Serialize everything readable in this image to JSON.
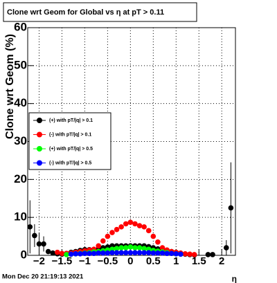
{
  "chart_data": {
    "type": "scatter",
    "title": "Clone wrt Geom for Global vs  η at pT > 0.11",
    "x_label": "η",
    "y_label": "Clone wrt Geom (%)",
    "footer": "Mon Dec 20 21:19:13 2021",
    "xlim": [
      -2.25,
      2.3
    ],
    "ylim": [
      0,
      60
    ],
    "xticks": [
      {
        "value": -2,
        "label": "−2"
      },
      {
        "value": -1.5,
        "label": "−1.5"
      },
      {
        "value": -1,
        "label": "−1"
      },
      {
        "value": -0.5,
        "label": "−0.5"
      },
      0,
      0.5,
      1,
      1.5,
      2
    ],
    "yticks": [
      0,
      10,
      20,
      30,
      40,
      50,
      60
    ],
    "grid": true,
    "legend": "left",
    "x": [
      -2.2,
      -2.1,
      -2.0,
      -1.9,
      -1.8,
      -1.7,
      -1.6,
      -1.5,
      -1.4,
      -1.3,
      -1.2,
      -1.1,
      -1.0,
      -0.9,
      -0.8,
      -0.7,
      -0.6,
      -0.5,
      -0.4,
      -0.3,
      -0.2,
      -0.1,
      0,
      0.1,
      0.2,
      0.3,
      0.4,
      0.5,
      0.6,
      0.7,
      0.8,
      0.9,
      1.0,
      1.1,
      1.2,
      1.3,
      1.4,
      1.5,
      1.6,
      1.7,
      1.8,
      1.9,
      2.0,
      2.1,
      2.2
    ],
    "series": [
      {
        "name": "(+) with pT/|q| > 0.1",
        "color": "#000000",
        "values": [
          7.5,
          5.2,
          3,
          3,
          1,
          0.6,
          0.4,
          0.3,
          0.5,
          0.8,
          1,
          1.3,
          1.5,
          1.5,
          1.5,
          1.7,
          2,
          2.2,
          2.5,
          2.5,
          2.5,
          2.5,
          2.5,
          2.5,
          2.5,
          2.5,
          2.3,
          2,
          1.7,
          1.5,
          1.3,
          1,
          0.8,
          0.5,
          0.3,
          0.2,
          0.1,
          null,
          null,
          0.2,
          0.2,
          null,
          null,
          2,
          12.5
        ],
        "errors": [
          7,
          3,
          3,
          2,
          0.5,
          0.3,
          0.3,
          0.3,
          0.3,
          0.3,
          0.3,
          0.3,
          0.3,
          0.3,
          0.3,
          0.3,
          0.3,
          0.3,
          0.3,
          0.3,
          0.3,
          0.3,
          0.3,
          0.3,
          0.3,
          0.3,
          0.3,
          0.3,
          0.3,
          0.3,
          0.3,
          0.3,
          0.3,
          0.3,
          0.3,
          0.3,
          0.3,
          null,
          null,
          0.3,
          0.3,
          null,
          null,
          2,
          12
        ]
      },
      {
        "name": "(-) with pT/|q| > 0.1",
        "color": "#ff0000",
        "values": [
          null,
          null,
          null,
          null,
          null,
          null,
          0.8,
          0.5,
          0.5,
          0.6,
          0.8,
          1,
          1.2,
          1.4,
          1.6,
          2.5,
          3.8,
          5,
          6,
          6.8,
          7.5,
          8.3,
          8.7,
          8.3,
          7.8,
          7.5,
          6.5,
          5,
          3.5,
          2,
          1.4,
          1,
          0.8,
          0.6,
          0.4,
          0.3,
          0.2,
          null,
          null,
          null,
          null,
          null,
          null,
          null,
          null
        ]
      },
      {
        "name": "(+) with pT/|q| > 0.5",
        "color": "#00ff00",
        "values": [
          null,
          null,
          null,
          null,
          null,
          null,
          null,
          null,
          0.2,
          0.3,
          0.4,
          0.5,
          0.6,
          0.7,
          0.9,
          1,
          1.2,
          1.4,
          1.6,
          1.8,
          2,
          2,
          2.2,
          2,
          2,
          1.8,
          1.6,
          1.3,
          1.1,
          0.9,
          0.7,
          0.5,
          0.4,
          0.3,
          null,
          null,
          null,
          null,
          null,
          null,
          null,
          null,
          null,
          null,
          null
        ]
      },
      {
        "name": "(-) with pT/|q| > 0.5",
        "color": "#0000ff",
        "values": [
          null,
          null,
          null,
          null,
          null,
          null,
          null,
          null,
          null,
          0.3,
          0.4,
          0.4,
          0.5,
          0.5,
          0.5,
          0.6,
          0.6,
          0.6,
          0.7,
          0.7,
          0.7,
          0.7,
          0.7,
          0.7,
          0.7,
          0.7,
          0.7,
          0.6,
          0.6,
          0.6,
          0.5,
          0.5,
          0.4,
          0.3,
          null,
          null,
          null,
          null,
          null,
          null,
          null,
          null,
          null,
          null,
          null
        ]
      }
    ]
  }
}
